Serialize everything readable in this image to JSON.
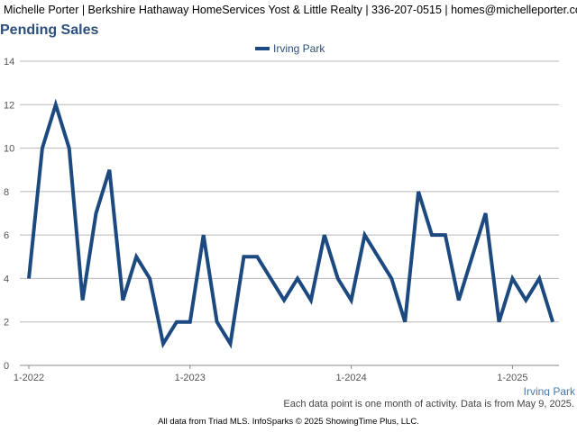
{
  "header": {
    "contact_line": "Michelle Porter | Berkshire Hathaway HomeServices Yost & Little Realty | 336-207-0515 | homes@michelleporter.com"
  },
  "chart_data": {
    "type": "line",
    "title": "Pending Sales",
    "x": [
      "2022-01",
      "2022-02",
      "2022-03",
      "2022-04",
      "2022-05",
      "2022-06",
      "2022-07",
      "2022-08",
      "2022-09",
      "2022-10",
      "2022-11",
      "2022-12",
      "2023-01",
      "2023-02",
      "2023-03",
      "2023-04",
      "2023-05",
      "2023-06",
      "2023-07",
      "2023-08",
      "2023-09",
      "2023-10",
      "2023-11",
      "2023-12",
      "2024-01",
      "2024-02",
      "2024-03",
      "2024-04",
      "2024-05",
      "2024-06",
      "2024-07",
      "2024-08",
      "2024-09",
      "2024-10",
      "2024-11",
      "2024-12",
      "2025-01",
      "2025-02",
      "2025-03",
      "2025-04"
    ],
    "series": [
      {
        "name": "Irving Park",
        "values": [
          4,
          10,
          12,
          10,
          3,
          7,
          9,
          3,
          5,
          4,
          1,
          2,
          2,
          6,
          2,
          1,
          5,
          5,
          4,
          3,
          4,
          3,
          6,
          4,
          3,
          6,
          5,
          4,
          2,
          8,
          6,
          6,
          3,
          5,
          7,
          2,
          4,
          3,
          4,
          2
        ]
      }
    ],
    "xtick_labels": [
      "1-2022",
      "1-2023",
      "1-2024",
      "1-2025"
    ],
    "ytick_labels": [
      "0",
      "2",
      "4",
      "6",
      "8",
      "10",
      "12",
      "14"
    ],
    "ylim": [
      0,
      14
    ],
    "grid": true,
    "legend": "top-center",
    "line_color": "#1c4a80",
    "axis_right_label": "Irving Park"
  },
  "notes": {
    "data_note": "Each data point is one month of activity. Data is from May 9, 2025.",
    "footer": "All data from Triad MLS. InfoSparks © 2025 ShowingTime Plus, LLC."
  }
}
